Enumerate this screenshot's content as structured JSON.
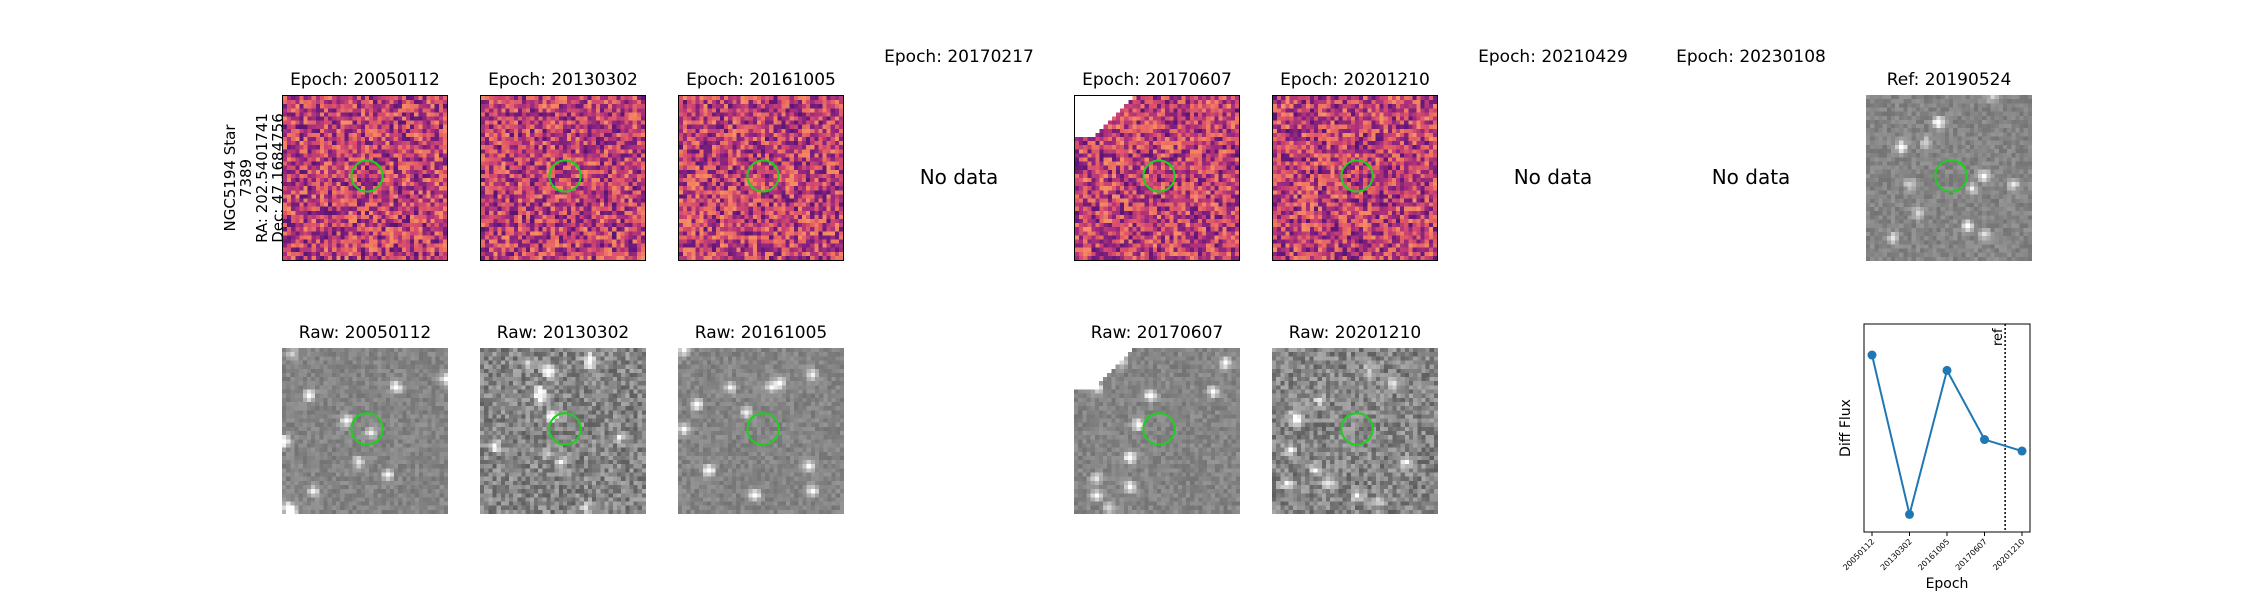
{
  "star_label": {
    "line1": "NGC5194 Star 7389",
    "line2": "RA: 202.5401741",
    "line3": "Dec: 47.1684756"
  },
  "top_row": [
    {
      "title": "Epoch: 20050112",
      "has_data": true,
      "cmap": "magma",
      "seed": 11
    },
    {
      "title": "Epoch: 20130302",
      "has_data": true,
      "cmap": "magma",
      "seed": 23
    },
    {
      "title": "Epoch: 20161005",
      "has_data": true,
      "cmap": "magma",
      "seed": 37
    },
    {
      "title": "Epoch: 20170217",
      "has_data": false,
      "nodata_text": "No data"
    },
    {
      "title": "Epoch: 20170607",
      "has_data": true,
      "cmap": "magma",
      "seed": 41,
      "clipped_corner": true
    },
    {
      "title": "Epoch: 20201210",
      "has_data": true,
      "cmap": "magma",
      "seed": 53
    },
    {
      "title": "Epoch: 20210429",
      "has_data": false,
      "nodata_text": "No data"
    },
    {
      "title": "Epoch: 20230108",
      "has_data": false,
      "nodata_text": "No data"
    },
    {
      "title": "Ref: 20190524",
      "has_data": true,
      "cmap": "gray",
      "seed": 67
    }
  ],
  "bottom_row": [
    {
      "title": "Raw: 20050112",
      "seed": 71
    },
    {
      "title": "Raw: 20130302",
      "seed": 83,
      "noisy": true
    },
    {
      "title": "Raw: 20161005",
      "seed": 97
    },
    null,
    {
      "title": "Raw: 20170607",
      "seed": 101,
      "clipped_corner": true
    },
    {
      "title": "Raw: 20201210",
      "seed": 113,
      "noisy": true
    }
  ],
  "colors": {
    "circle": "#22cc22",
    "line": "#1f77b4"
  },
  "chart_data": {
    "type": "line",
    "title": "",
    "xlabel": "Epoch",
    "ylabel": "Diff Flux",
    "categories": [
      "20050112",
      "20130302",
      "20161005",
      "20170607",
      "20201210"
    ],
    "values": [
      0.88,
      0.05,
      0.8,
      0.44,
      0.38
    ],
    "ylim": [
      0,
      1
    ],
    "ref_line": {
      "label": "ref",
      "position_between": [
        3,
        4
      ],
      "fraction": 0.55
    },
    "grid": false,
    "legend": "none"
  }
}
